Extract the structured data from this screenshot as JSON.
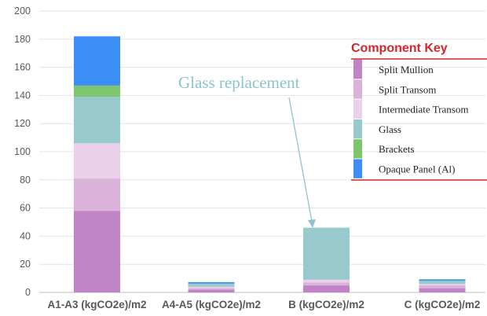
{
  "chart_data": {
    "type": "bar",
    "stacked": true,
    "categories": [
      "A1-A3 (kgCO2e)/m2",
      "A4-A5 (kgCO2e)/m2",
      "B (kgCO2e)/m2",
      "C (kgCO2e)/m2"
    ],
    "ylim": [
      0,
      200
    ],
    "yticks": [
      0,
      20,
      40,
      60,
      80,
      100,
      120,
      140,
      160,
      180,
      200
    ],
    "grid": true,
    "series": [
      {
        "name": "Split Mullion",
        "color": "#c083c6",
        "values": [
          58,
          2,
          5,
          3
        ]
      },
      {
        "name": "Split Transom",
        "color": "#dbb3da",
        "values": [
          23,
          1,
          2,
          2
        ]
      },
      {
        "name": "Intermediate Transom",
        "color": "#ead0e8",
        "values": [
          25,
          1,
          2,
          1
        ]
      },
      {
        "name": "Glass",
        "color": "#98c9cd",
        "values": [
          33,
          2,
          37,
          2
        ]
      },
      {
        "name": "Brackets",
        "color": "#7ec66d",
        "values": [
          8,
          0.3,
          0,
          0.3
        ]
      },
      {
        "name": "Opaque Panel (Al)",
        "color": "#3d8ef4",
        "values": [
          35,
          1,
          0,
          1
        ]
      }
    ],
    "legend": {
      "title": "Component Key",
      "position": "right"
    },
    "annotation": {
      "text": "Glass replacement",
      "target_category": "B (kgCO2e)/m2"
    }
  }
}
